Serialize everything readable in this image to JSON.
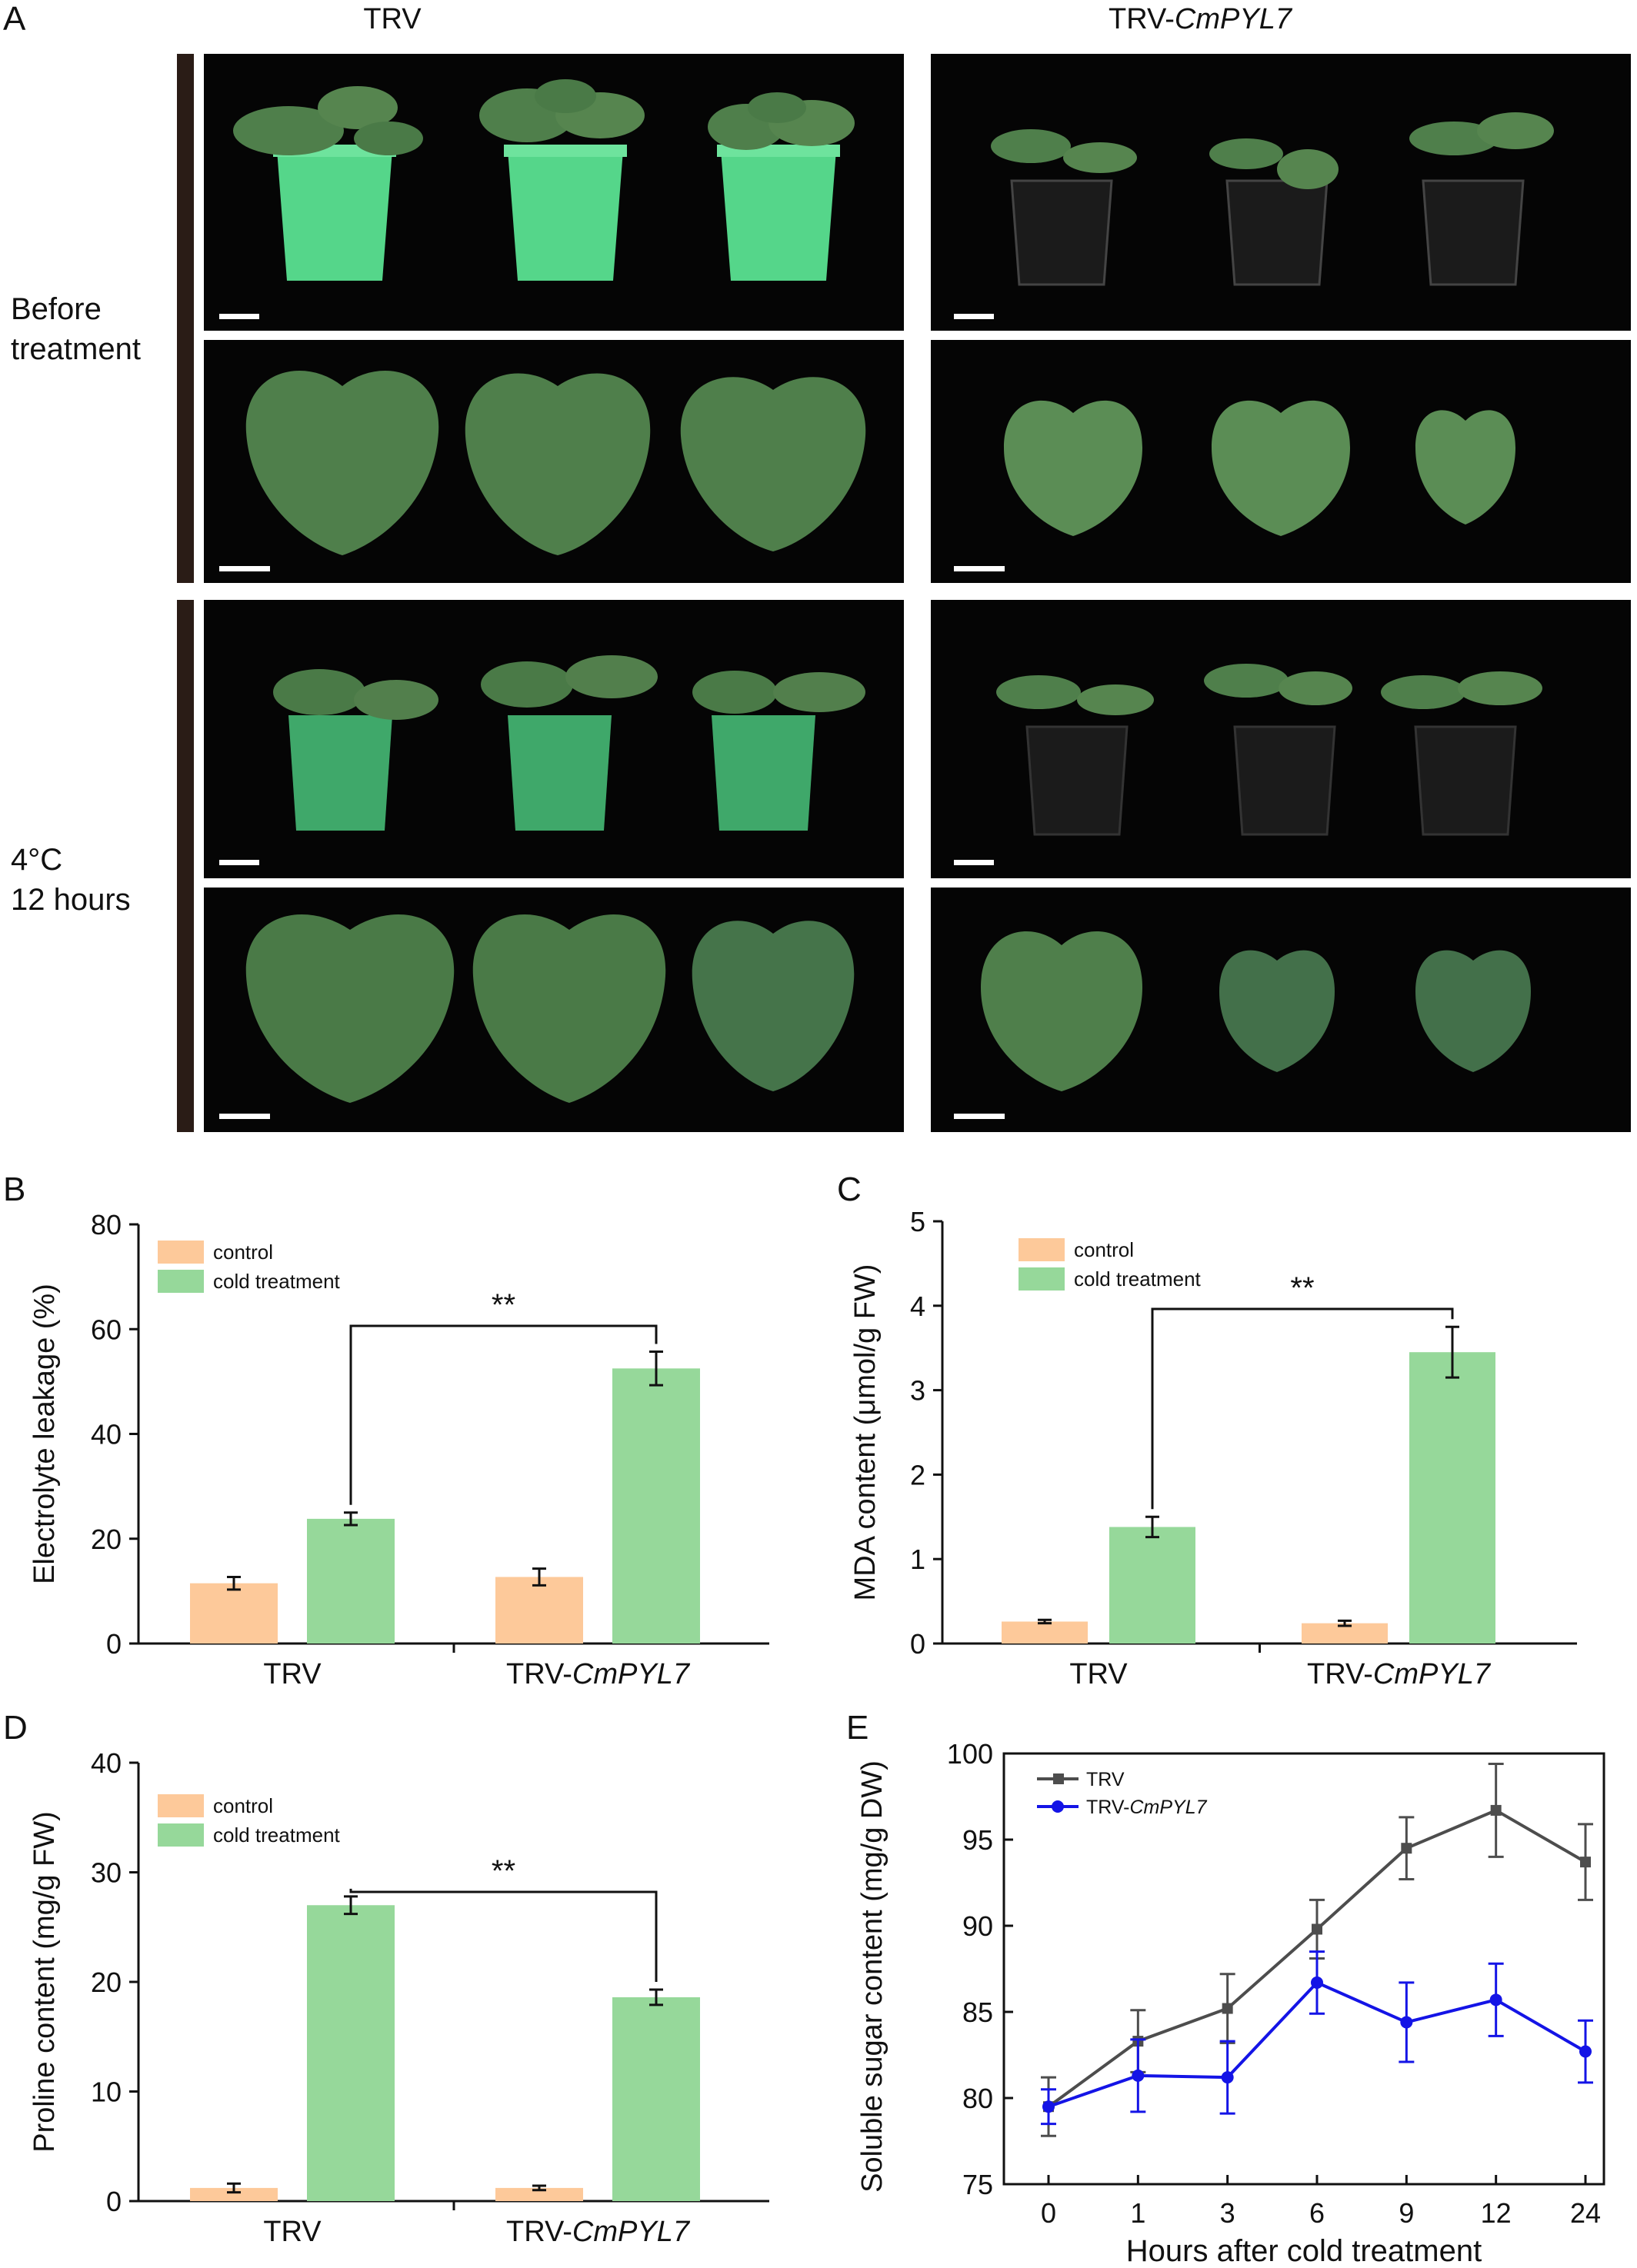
{
  "panel_a": {
    "label": "A",
    "col_titles": [
      {
        "main": "TRV",
        "italic": ""
      },
      {
        "main": "TRV-",
        "italic": "CmPYL7"
      }
    ],
    "rows": [
      {
        "label_lines": [
          "Before",
          "treatment"
        ]
      },
      {
        "label_lines": [
          "4°C",
          "12 hours"
        ]
      }
    ],
    "colors": {
      "green_pot": "#55d68a",
      "dark_pot": "#1b1b1b",
      "leaf": "#4f7f4b",
      "leaf_dark": "#3c6b3d",
      "bg": "#050505"
    }
  },
  "chart_data": [
    {
      "panel": "B",
      "type": "bar",
      "categories": [
        "TRV",
        "TRV-CmPYL7"
      ],
      "category_parts": [
        {
          "main": "TRV",
          "italic": ""
        },
        {
          "main": "TRV-",
          "italic": "CmPYL7"
        }
      ],
      "series": [
        {
          "name": "control",
          "color": "#fdc99a",
          "values": [
            11.5,
            12.7
          ],
          "errors": [
            1.2,
            1.6
          ]
        },
        {
          "name": "cold treatment",
          "color": "#96d89a",
          "values": [
            23.8,
            52.5
          ],
          "errors": [
            1.2,
            3.2
          ]
        }
      ],
      "ylabel": "Electrolyte leakage (%)",
      "ylim": [
        0,
        80
      ],
      "yticks": [
        0,
        20,
        40,
        60,
        80
      ],
      "significance": "**",
      "legend": "top-left"
    },
    {
      "panel": "C",
      "type": "bar",
      "categories": [
        "TRV",
        "TRV-CmPYL7"
      ],
      "category_parts": [
        {
          "main": "TRV",
          "italic": ""
        },
        {
          "main": "TRV-",
          "italic": "CmPYL7"
        }
      ],
      "series": [
        {
          "name": "control",
          "color": "#fdc99a",
          "values": [
            0.26,
            0.24
          ],
          "errors": [
            0.02,
            0.03
          ]
        },
        {
          "name": "cold treatment",
          "color": "#96d89a",
          "values": [
            1.38,
            3.45
          ],
          "errors": [
            0.12,
            0.3
          ]
        }
      ],
      "ylabel": "MDA content (μmol/g FW)",
      "ylim": [
        0,
        5
      ],
      "yticks": [
        0,
        1,
        2,
        3,
        4,
        5
      ],
      "significance": "**",
      "legend": "top-left"
    },
    {
      "panel": "D",
      "type": "bar",
      "categories": [
        "TRV",
        "TRV-CmPYL7"
      ],
      "category_parts": [
        {
          "main": "TRV",
          "italic": ""
        },
        {
          "main": "TRV-",
          "italic": "CmPYL7"
        }
      ],
      "series": [
        {
          "name": "control",
          "color": "#fdc99a",
          "values": [
            1.2,
            1.2
          ],
          "errors": [
            0.4,
            0.2
          ]
        },
        {
          "name": "cold treatment",
          "color": "#96d89a",
          "values": [
            27.0,
            18.6
          ],
          "errors": [
            0.8,
            0.7
          ]
        }
      ],
      "ylabel": "Proline content (mg/g FW)",
      "ylim": [
        0,
        40
      ],
      "yticks": [
        0,
        10,
        20,
        30,
        40
      ],
      "significance": "**",
      "legend": "top-left"
    },
    {
      "panel": "E",
      "type": "line",
      "x": [
        "0",
        "1",
        "3",
        "6",
        "9",
        "12",
        "24"
      ],
      "series": [
        {
          "name": "TRV",
          "name_parts": {
            "main": "TRV",
            "italic": ""
          },
          "color": "#4d4d4d",
          "marker": "square",
          "values": [
            79.5,
            83.3,
            85.2,
            89.8,
            94.5,
            96.7,
            93.7
          ],
          "errors": [
            1.7,
            1.8,
            2.0,
            1.7,
            1.8,
            2.7,
            2.2
          ]
        },
        {
          "name": "TRV-CmPYL7",
          "name_parts": {
            "main": "TRV-",
            "italic": "CmPYL7"
          },
          "color": "#1414e6",
          "marker": "circle",
          "values": [
            79.5,
            81.3,
            81.2,
            86.7,
            84.4,
            85.7,
            82.7
          ],
          "errors": [
            1.0,
            2.1,
            2.1,
            1.8,
            2.3,
            2.1,
            1.8
          ]
        }
      ],
      "xlabel": "Hours after cold treatment",
      "ylabel": "Soluble sugar content (mg/g DW)",
      "ylim": [
        75,
        100
      ],
      "yticks": [
        75,
        80,
        85,
        90,
        95,
        100
      ],
      "legend": "top-left"
    }
  ]
}
